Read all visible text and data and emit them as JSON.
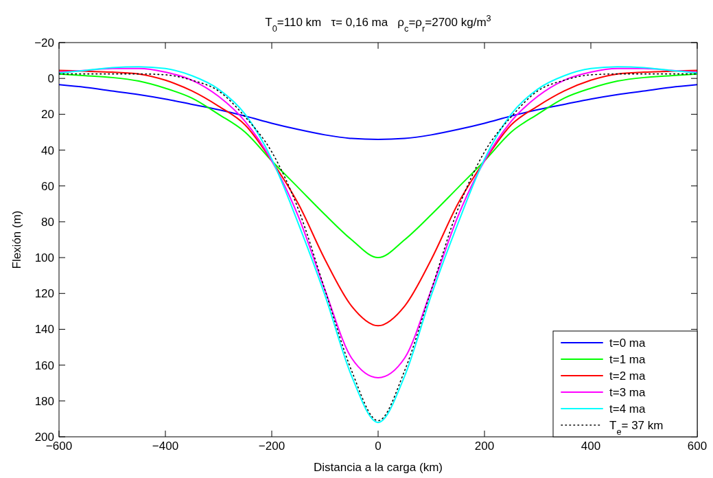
{
  "chart_data": {
    "type": "line",
    "title": "T$_{0}$=110 km   τ= 0,16 ma   ρ$_{c}$=ρ$_{r}$=2700 kg/m$^{3}$",
    "xlabel": "Distancia a la carga (km)",
    "ylabel": "Flexión (m)",
    "x": [
      -600,
      -550,
      -500,
      -450,
      -400,
      -350,
      -300,
      -250,
      -200,
      -150,
      -100,
      -50,
      0,
      50,
      100,
      150,
      200,
      250,
      300,
      350,
      400,
      450,
      500,
      550,
      600
    ],
    "series": [
      {
        "name": "t=0 ma",
        "color": "#0000ff",
        "values": [
          3.5,
          5,
          7,
          9,
          11.5,
          14.5,
          17.5,
          21,
          25,
          28.5,
          31.5,
          33.5,
          34,
          33.5,
          31.5,
          28.5,
          25,
          21,
          17.5,
          14.5,
          11.5,
          9,
          7,
          5,
          3.5
        ]
      },
      {
        "name": "t=1 ma",
        "color": "#00ff00",
        "values": [
          -2.5,
          -1.5,
          -0.5,
          1.5,
          5.5,
          11,
          20,
          30,
          46,
          61,
          76,
          90,
          100,
          90,
          76,
          61,
          46,
          30,
          20,
          11,
          5.5,
          1.5,
          -0.5,
          -1.5,
          -2.5
        ]
      },
      {
        "name": "t=2 ma",
        "color": "#ff0000",
        "values": [
          -4.5,
          -4,
          -3.5,
          -2.5,
          1,
          7,
          15.5,
          26,
          46,
          70,
          101,
          127,
          138,
          127,
          101,
          70,
          46,
          26,
          15.5,
          7,
          1,
          -2.5,
          -3.5,
          -4,
          -4.5
        ]
      },
      {
        "name": "t=3 ma",
        "color": "#ff00ff",
        "values": [
          -3.5,
          -4.5,
          -5.5,
          -5.5,
          -3.5,
          1,
          10,
          24,
          46,
          77,
          118,
          156,
          167,
          156,
          118,
          77,
          46,
          24,
          10,
          1,
          -3.5,
          -5.5,
          -5.5,
          -4.5,
          -3.5
        ]
      },
      {
        "name": "t=4 ma",
        "color": "#00ffff",
        "values": [
          -3,
          -4.5,
          -6,
          -6.5,
          -5.5,
          -1.5,
          6,
          20,
          45,
          81,
          121,
          166,
          192,
          166,
          121,
          81,
          45,
          20,
          6,
          -1.5,
          -5.5,
          -6.5,
          -6,
          -4.5,
          -3
        ]
      },
      {
        "name": "T$_{e}$= 37 km",
        "color": "#000000",
        "line_style": "dotted",
        "values": [
          -2.5,
          -2.5,
          -2.5,
          -2.5,
          -2,
          1,
          7,
          21.5,
          41,
          73,
          118,
          163,
          191,
          163,
          118,
          73,
          41,
          21.5,
          7,
          1,
          -2,
          -2.5,
          -2.5,
          -2.5,
          -2.5
        ]
      }
    ],
    "xlim": [
      -600,
      600
    ],
    "xticks": [
      {
        "value": -600,
        "label": "−600"
      },
      {
        "value": -400,
        "label": "−400"
      },
      {
        "value": -200,
        "label": "−200"
      },
      0,
      200,
      400,
      600
    ],
    "ylim": [
      200,
      -20
    ],
    "yticks": [
      {
        "value": -20,
        "label": "−20"
      },
      0,
      20,
      40,
      60,
      80,
      100,
      120,
      140,
      160,
      180,
      200
    ],
    "grid": false,
    "legend": "bottom right",
    "line_style": "solid"
  }
}
